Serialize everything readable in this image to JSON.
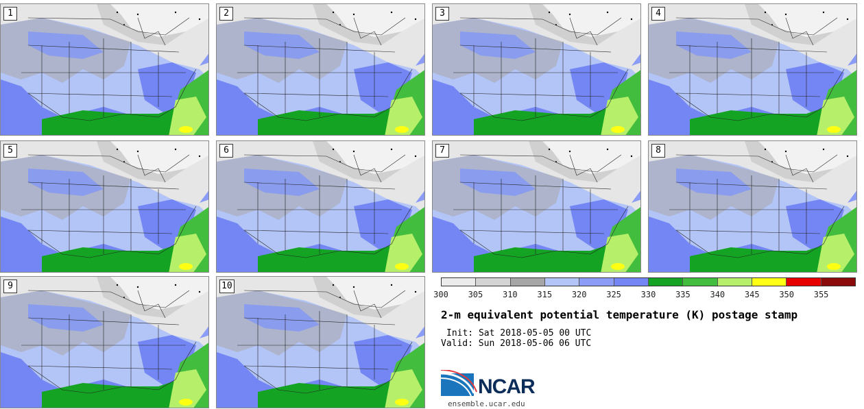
{
  "panels": [
    {
      "label": "1"
    },
    {
      "label": "2"
    },
    {
      "label": "3"
    },
    {
      "label": "4"
    },
    {
      "label": "5"
    },
    {
      "label": "6"
    },
    {
      "label": "7"
    },
    {
      "label": "8"
    },
    {
      "label": "9"
    },
    {
      "label": "10"
    }
  ],
  "colorbar": {
    "colors": [
      "#ebebeb",
      "#d4d4d4",
      "#a6a6a6",
      "#b3c4f7",
      "#8a9cf5",
      "#7386f3",
      "#14a322",
      "#43bd3e",
      "#b6f06a",
      "#ffff14",
      "#e60000",
      "#8b0a0a"
    ],
    "ticks": [
      "300",
      "305",
      "310",
      "315",
      "320",
      "325",
      "330",
      "335",
      "340",
      "345",
      "350",
      "355"
    ]
  },
  "title": "2-m equivalent potential temperature (K) postage stamp",
  "init": "Init: Sat 2018-05-05 00 UTC",
  "valid": "Valid: Sun 2018-05-06 06 UTC",
  "logo": {
    "text": "NCAR",
    "accent": "#1b75bc"
  },
  "site": "ensemble.ucar.edu"
}
